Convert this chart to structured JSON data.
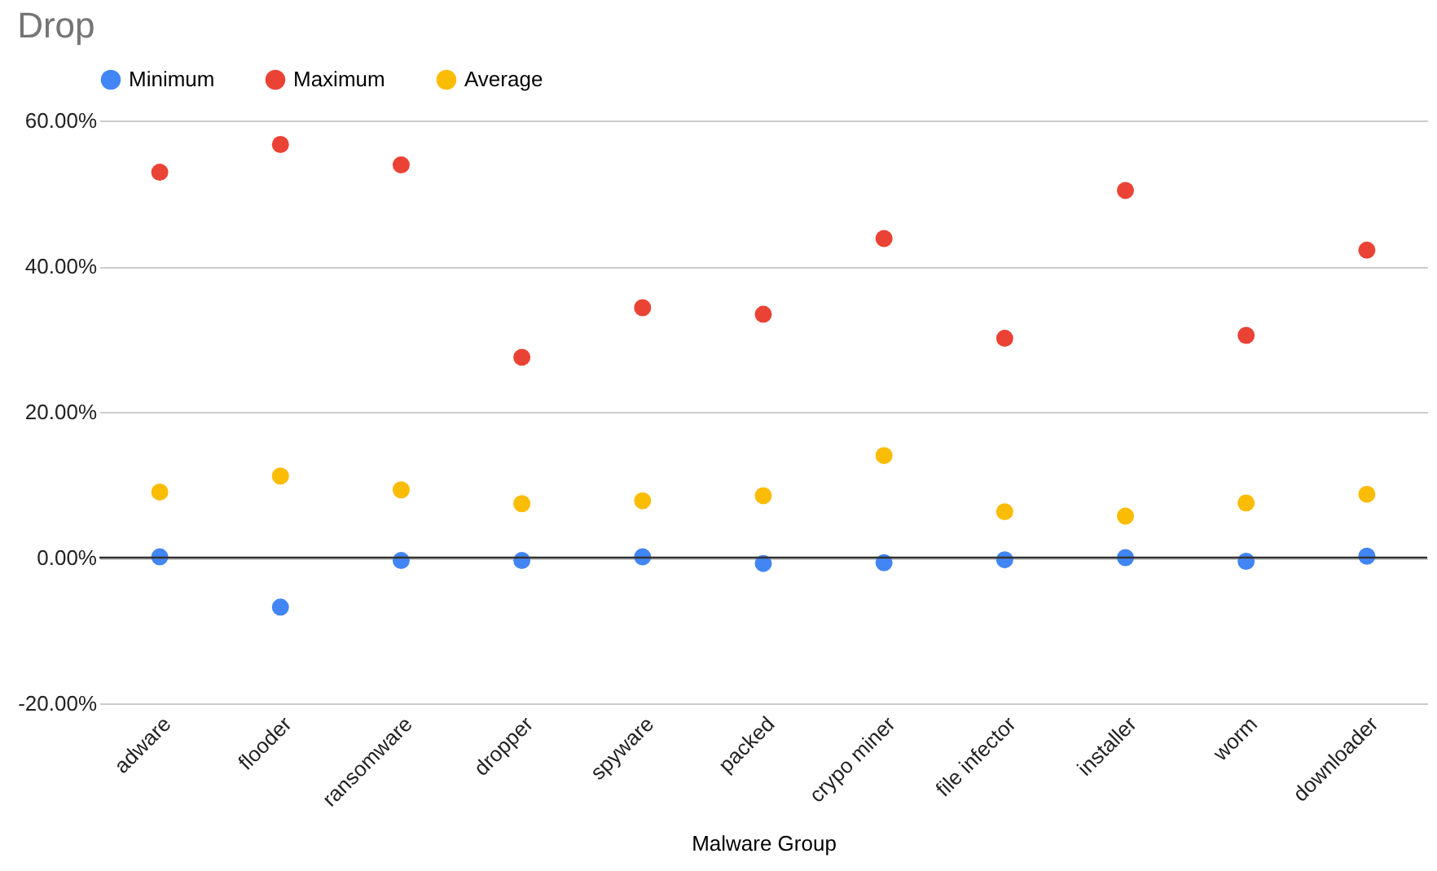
{
  "chart_data": {
    "type": "scatter",
    "title": "Drop",
    "xlabel": "Malware Group",
    "categories": [
      "adware",
      "flooder",
      "ransomware",
      "dropper",
      "spyware",
      "packed",
      "crypo miner",
      "file infector",
      "installer",
      "worm",
      "downloader"
    ],
    "series": [
      {
        "name": "Minimum",
        "color": "#4285f4",
        "values": [
          0.1,
          -6.8,
          -0.4,
          -0.4,
          0.1,
          -0.8,
          -0.7,
          -0.3,
          0,
          -0.5,
          0.2
        ]
      },
      {
        "name": "Maximum",
        "color": "#ea4335",
        "values": [
          52.9,
          56.7,
          53.9,
          27.5,
          34.3,
          33.4,
          43.8,
          30.1,
          50.4,
          30.5,
          42.2
        ]
      },
      {
        "name": "Average",
        "color": "#fbbc04",
        "values": [
          9,
          11.2,
          9.3,
          7.4,
          7.8,
          8.5,
          14,
          6.3,
          5.7,
          7.5,
          8.7
        ]
      }
    ],
    "ylim": [
      -20,
      60
    ],
    "yticks": [
      {
        "value": -20,
        "label": "-20.00%"
      },
      {
        "value": 0,
        "label": "0.00%"
      },
      {
        "value": 20,
        "label": "20.00%"
      },
      {
        "value": 40,
        "label": "40.00%"
      },
      {
        "value": 60,
        "label": "60.00%"
      }
    ],
    "ref_lines": [
      {
        "axis": "y",
        "value": 0,
        "color": "#333333"
      }
    ],
    "grid": "y",
    "legend": "top",
    "marker": "circle"
  }
}
